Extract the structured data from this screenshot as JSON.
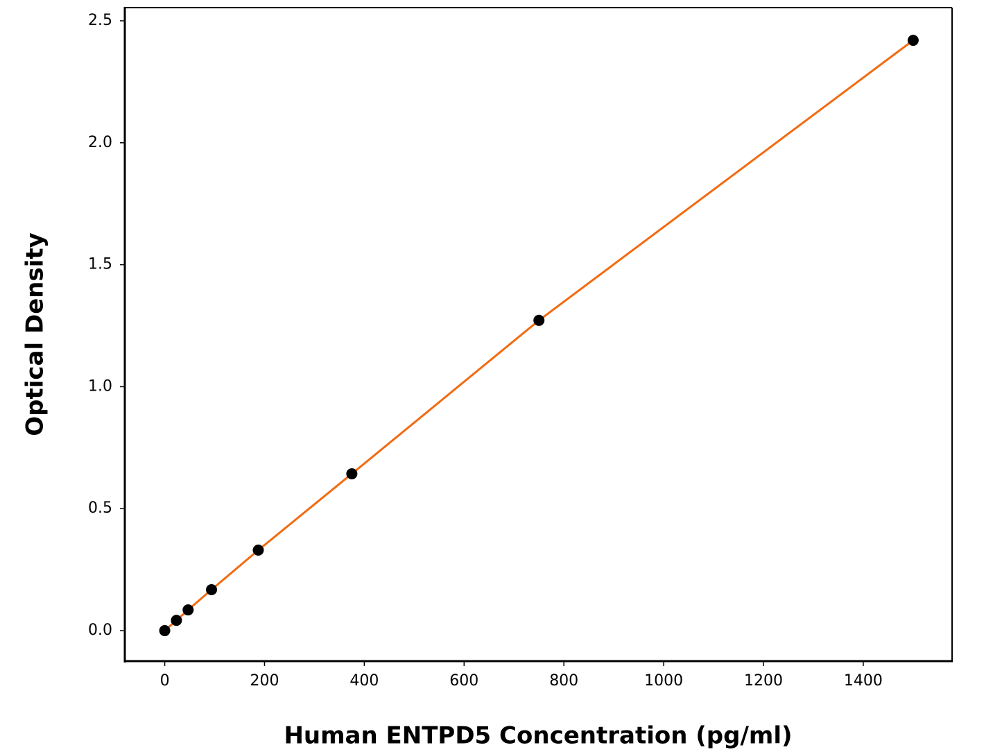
{
  "chart_data": {
    "type": "scatter",
    "xlabel": "Human ENTPD5 Concentration (pg/ml)",
    "ylabel": "Optical Density",
    "x": [
      0,
      23.4375,
      46.875,
      93.75,
      187.5,
      375,
      750,
      1500
    ],
    "series": [
      {
        "mode": "line",
        "color": "#f26b11",
        "values": [
          0.0,
          0.042,
          0.085,
          0.168,
          0.33,
          0.643,
          1.272,
          2.42
        ]
      },
      {
        "mode": "markers",
        "color": "#000000",
        "values": [
          0.0,
          0.042,
          0.085,
          0.168,
          0.33,
          0.643,
          1.272,
          2.42
        ]
      }
    ],
    "xlim": [
      -80,
      1578
    ],
    "ylim": [
      -0.125,
      2.554
    ],
    "xticks": [
      0,
      200,
      400,
      600,
      800,
      1000,
      1200,
      1400
    ],
    "yticks": [
      {
        "value": 0,
        "label": "0.0"
      },
      0.5,
      {
        "value": 1,
        "label": "1.0"
      },
      1.5,
      {
        "value": 2,
        "label": "2.0"
      },
      2.5
    ],
    "grid": false
  }
}
